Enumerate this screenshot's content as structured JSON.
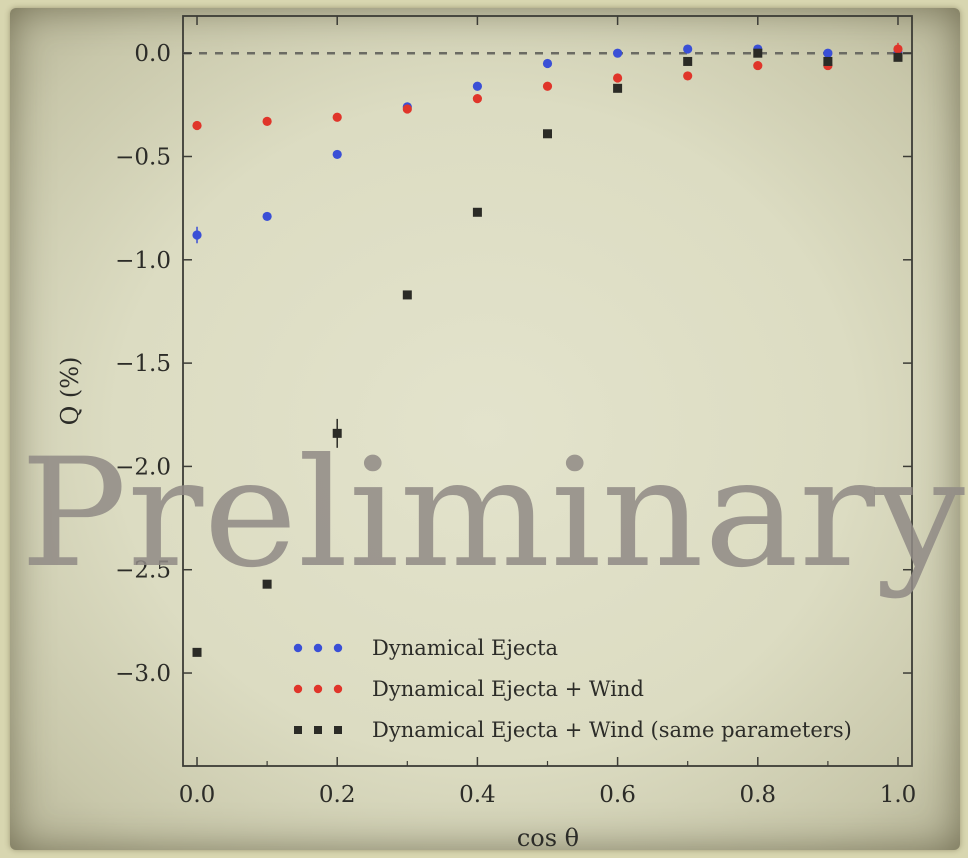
{
  "chart_data": {
    "type": "scatter",
    "xlabel": "cos θ",
    "ylabel": "Q (%)",
    "xlim": [
      -0.02,
      1.02
    ],
    "ylim": [
      -3.45,
      0.18
    ],
    "xticks": [
      "0.0",
      "0.2",
      "0.4",
      "0.6",
      "0.8",
      "1.0"
    ],
    "yticks": [
      "0.0",
      "−0.5",
      "−1.0",
      "−1.5",
      "−2.0",
      "−2.5",
      "−3.0"
    ],
    "reference_line": 0.0,
    "legend_position": "lower-center",
    "watermark": "Preliminary",
    "x": [
      0.0,
      0.1,
      0.2,
      0.3,
      0.4,
      0.5,
      0.6,
      0.7,
      0.8,
      0.9,
      1.0
    ],
    "series": [
      {
        "name": "Dynamical Ejecta",
        "color": "#3a4fd6",
        "marker": "circle",
        "values": [
          -0.88,
          -0.79,
          -0.49,
          -0.26,
          -0.16,
          -0.05,
          0.0,
          0.02,
          0.02,
          0.0,
          0.0
        ],
        "errors": [
          0.04,
          0.01,
          0.01,
          0.01,
          0.01,
          0.02,
          0.01,
          0.01,
          0.01,
          0.01,
          0.02
        ]
      },
      {
        "name": "Dynamical Ejecta + Wind",
        "color": "#e0352a",
        "marker": "circle",
        "values": [
          -0.35,
          -0.33,
          -0.31,
          -0.27,
          -0.22,
          -0.16,
          -0.12,
          -0.11,
          -0.06,
          -0.06,
          0.02
        ],
        "errors": [
          0.02,
          0.02,
          0.01,
          0.01,
          0.01,
          0.01,
          0.01,
          0.01,
          0.01,
          0.01,
          0.03
        ]
      },
      {
        "name": "Dynamical Ejecta + Wind (same parameters)",
        "color": "#2b2b26",
        "marker": "square",
        "values": [
          -2.9,
          -2.57,
          -1.84,
          -1.17,
          -0.77,
          -0.39,
          -0.17,
          -0.04,
          0.0,
          -0.04,
          -0.02
        ],
        "errors": [
          0.02,
          0.02,
          0.07,
          0.02,
          0.01,
          0.01,
          0.01,
          0.01,
          0.01,
          0.01,
          0.01
        ]
      }
    ]
  }
}
